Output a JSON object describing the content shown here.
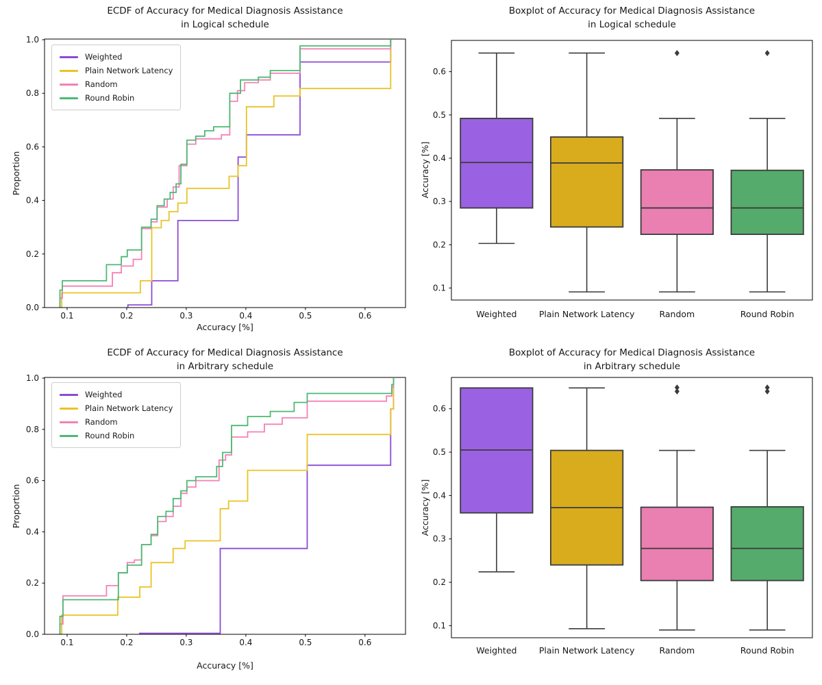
{
  "figure": {
    "background": "#ffffff",
    "text_color": "#171717",
    "spine_color": "#000000",
    "box_edge_color": "#3b3b3b"
  },
  "chart_data": [
    {
      "type": "line",
      "subtype": "ecdf-step",
      "title": "ECDF of Accuracy for Medical Diagnosis Assistance\nin Logical schedule",
      "xlabel": "Accuracy [%]",
      "ylabel": "Proportion",
      "xlim": [
        0.0621,
        0.668
      ],
      "ylim": [
        0.0,
        1.0
      ],
      "xticks": [
        0.1,
        0.2,
        0.3,
        0.4,
        0.5,
        0.6
      ],
      "yticks": [
        0.0,
        0.2,
        0.4,
        0.6,
        0.8,
        1.0
      ],
      "grid": false,
      "legend": {
        "position": "upper left",
        "entries": [
          "Weighted",
          "Plain Network Latency",
          "Random",
          "Round Robin"
        ]
      },
      "series": [
        {
          "name": "Weighted",
          "color": "#8b4bd5",
          "steps": [
            [
              0.202,
              0.01
            ],
            [
              0.242,
              0.1
            ],
            [
              0.286,
              0.325
            ],
            [
              0.387,
              0.562
            ],
            [
              0.401,
              0.645
            ],
            [
              0.491,
              0.917
            ],
            [
              0.643,
              1.0
            ]
          ]
        },
        {
          "name": "Plain Network Latency",
          "color": "#e9c326",
          "steps": [
            [
              0.091,
              0.055
            ],
            [
              0.223,
              0.1
            ],
            [
              0.242,
              0.298
            ],
            [
              0.258,
              0.325
            ],
            [
              0.271,
              0.358
            ],
            [
              0.286,
              0.39
            ],
            [
              0.301,
              0.445
            ],
            [
              0.372,
              0.49
            ],
            [
              0.387,
              0.53
            ],
            [
              0.401,
              0.75
            ],
            [
              0.447,
              0.79
            ],
            [
              0.491,
              0.818
            ],
            [
              0.643,
              1.0
            ]
          ]
        },
        {
          "name": "Random",
          "color": "#f381b5",
          "steps": [
            [
              0.088,
              0.035
            ],
            [
              0.092,
              0.08
            ],
            [
              0.176,
              0.13
            ],
            [
              0.191,
              0.155
            ],
            [
              0.211,
              0.18
            ],
            [
              0.225,
              0.295
            ],
            [
              0.241,
              0.32
            ],
            [
              0.251,
              0.375
            ],
            [
              0.268,
              0.405
            ],
            [
              0.278,
              0.45
            ],
            [
              0.288,
              0.53
            ],
            [
              0.301,
              0.61
            ],
            [
              0.316,
              0.63
            ],
            [
              0.359,
              0.645
            ],
            [
              0.373,
              0.77
            ],
            [
              0.386,
              0.81
            ],
            [
              0.398,
              0.84
            ],
            [
              0.421,
              0.85
            ],
            [
              0.441,
              0.875
            ],
            [
              0.491,
              0.966
            ],
            [
              0.643,
              1.0
            ]
          ]
        },
        {
          "name": "Round Robin",
          "color": "#4cb974",
          "steps": [
            [
              0.088,
              0.065
            ],
            [
              0.092,
              0.1
            ],
            [
              0.166,
              0.16
            ],
            [
              0.191,
              0.19
            ],
            [
              0.201,
              0.215
            ],
            [
              0.225,
              0.3
            ],
            [
              0.241,
              0.33
            ],
            [
              0.251,
              0.38
            ],
            [
              0.263,
              0.405
            ],
            [
              0.273,
              0.43
            ],
            [
              0.283,
              0.462
            ],
            [
              0.291,
              0.535
            ],
            [
              0.301,
              0.625
            ],
            [
              0.316,
              0.64
            ],
            [
              0.331,
              0.66
            ],
            [
              0.346,
              0.675
            ],
            [
              0.373,
              0.8
            ],
            [
              0.391,
              0.85
            ],
            [
              0.421,
              0.86
            ],
            [
              0.441,
              0.885
            ],
            [
              0.491,
              0.977
            ],
            [
              0.643,
              1.0
            ]
          ]
        }
      ]
    },
    {
      "type": "boxplot",
      "title": "Boxplot of Accuracy for Medical Diagnosis Assistance\nin Logical schedule",
      "xlabel": "",
      "ylabel": "Accuracy [%]",
      "ylim": [
        0.0722,
        0.6722
      ],
      "yticks": [
        0.1,
        0.2,
        0.3,
        0.4,
        0.5,
        0.6
      ],
      "grid": false,
      "categories": [
        "Weighted",
        "Plain Network Latency",
        "Random",
        "Round Robin"
      ],
      "boxes": [
        {
          "label": "Weighted",
          "color": "#9a62e3",
          "whislo": 0.203,
          "q1": 0.285,
          "med": 0.39,
          "q3": 0.492,
          "whishi": 0.643,
          "fliers": []
        },
        {
          "label": "Plain Network Latency",
          "color": "#d9ac1e",
          "whislo": 0.091,
          "q1": 0.241,
          "med": 0.389,
          "q3": 0.449,
          "whishi": 0.643,
          "fliers": []
        },
        {
          "label": "Random",
          "color": "#ea7fb1",
          "whislo": 0.091,
          "q1": 0.224,
          "med": 0.285,
          "q3": 0.373,
          "whishi": 0.492,
          "fliers": [
            0.643
          ]
        },
        {
          "label": "Round Robin",
          "color": "#55ab6b",
          "whislo": 0.091,
          "q1": 0.224,
          "med": 0.285,
          "q3": 0.372,
          "whishi": 0.492,
          "fliers": [
            0.643
          ]
        }
      ]
    },
    {
      "type": "line",
      "subtype": "ecdf-step",
      "title": "ECDF of Accuracy for Medical Diagnosis Assistance\nin Arbitrary schedule",
      "xlabel": "Accuracy [%]",
      "ylabel": "Proportion",
      "xlim": [
        0.0621,
        0.668
      ],
      "ylim": [
        0.0,
        1.0
      ],
      "xticks": [
        0.1,
        0.2,
        0.3,
        0.4,
        0.5,
        0.6
      ],
      "yticks": [
        0.0,
        0.2,
        0.4,
        0.6,
        0.8,
        1.0
      ],
      "grid": false,
      "legend": {
        "position": "upper left",
        "entries": [
          "Weighted",
          "Plain Network Latency",
          "Random",
          "Round Robin"
        ]
      },
      "series": [
        {
          "name": "Weighted",
          "color": "#8b4bd5",
          "steps": [
            [
              0.222,
              0.004
            ],
            [
              0.357,
              0.335
            ],
            [
              0.503,
              0.66
            ],
            [
              0.643,
              0.88
            ],
            [
              0.648,
              1.0
            ]
          ]
        },
        {
          "name": "Plain Network Latency",
          "color": "#e9c326",
          "steps": [
            [
              0.091,
              0.075
            ],
            [
              0.185,
              0.145
            ],
            [
              0.222,
              0.185
            ],
            [
              0.241,
              0.28
            ],
            [
              0.278,
              0.335
            ],
            [
              0.298,
              0.365
            ],
            [
              0.357,
              0.49
            ],
            [
              0.371,
              0.52
            ],
            [
              0.403,
              0.64
            ],
            [
              0.503,
              0.78
            ],
            [
              0.643,
              0.88
            ],
            [
              0.648,
              1.0
            ]
          ]
        },
        {
          "name": "Random",
          "color": "#f381b5",
          "steps": [
            [
              0.088,
              0.04
            ],
            [
              0.093,
              0.15
            ],
            [
              0.166,
              0.19
            ],
            [
              0.186,
              0.24
            ],
            [
              0.201,
              0.28
            ],
            [
              0.213,
              0.29
            ],
            [
              0.225,
              0.35
            ],
            [
              0.241,
              0.385
            ],
            [
              0.252,
              0.44
            ],
            [
              0.266,
              0.46
            ],
            [
              0.278,
              0.5
            ],
            [
              0.291,
              0.55
            ],
            [
              0.301,
              0.575
            ],
            [
              0.316,
              0.6
            ],
            [
              0.355,
              0.68
            ],
            [
              0.366,
              0.7
            ],
            [
              0.376,
              0.77
            ],
            [
              0.403,
              0.79
            ],
            [
              0.431,
              0.82
            ],
            [
              0.461,
              0.845
            ],
            [
              0.503,
              0.91
            ],
            [
              0.636,
              0.93
            ],
            [
              0.645,
              0.965
            ],
            [
              0.648,
              1.0
            ]
          ]
        },
        {
          "name": "Round Robin",
          "color": "#4cb974",
          "steps": [
            [
              0.088,
              0.07
            ],
            [
              0.093,
              0.135
            ],
            [
              0.186,
              0.24
            ],
            [
              0.201,
              0.27
            ],
            [
              0.225,
              0.35
            ],
            [
              0.241,
              0.39
            ],
            [
              0.252,
              0.46
            ],
            [
              0.266,
              0.48
            ],
            [
              0.278,
              0.53
            ],
            [
              0.291,
              0.56
            ],
            [
              0.301,
              0.6
            ],
            [
              0.316,
              0.615
            ],
            [
              0.351,
              0.655
            ],
            [
              0.361,
              0.71
            ],
            [
              0.376,
              0.815
            ],
            [
              0.403,
              0.85
            ],
            [
              0.441,
              0.87
            ],
            [
              0.481,
              0.905
            ],
            [
              0.503,
              0.94
            ],
            [
              0.645,
              0.975
            ],
            [
              0.648,
              1.0
            ]
          ]
        }
      ]
    },
    {
      "type": "boxplot",
      "title": "Boxplot of Accuracy for Medical Diagnosis Assistance\nin Arbitrary schedule",
      "xlabel": "",
      "ylabel": "Accuracy [%]",
      "ylim": [
        0.0722,
        0.6722
      ],
      "yticks": [
        0.1,
        0.2,
        0.3,
        0.4,
        0.5,
        0.6
      ],
      "grid": false,
      "categories": [
        "Weighted",
        "Plain Network Latency",
        "Random",
        "Round Robin"
      ],
      "boxes": [
        {
          "label": "Weighted",
          "color": "#9a62e3",
          "whislo": 0.224,
          "q1": 0.36,
          "med": 0.505,
          "q3": 0.648,
          "whishi": 0.648,
          "fliers": []
        },
        {
          "label": "Plain Network Latency",
          "color": "#d9ac1e",
          "whislo": 0.093,
          "q1": 0.24,
          "med": 0.372,
          "q3": 0.504,
          "whishi": 0.648,
          "fliers": []
        },
        {
          "label": "Random",
          "color": "#ea7fb1",
          "whislo": 0.09,
          "q1": 0.204,
          "med": 0.278,
          "q3": 0.373,
          "whishi": 0.504,
          "fliers": [
            0.64,
            0.649
          ]
        },
        {
          "label": "Round Robin",
          "color": "#55ab6b",
          "whislo": 0.09,
          "q1": 0.204,
          "med": 0.278,
          "q3": 0.374,
          "whishi": 0.504,
          "fliers": [
            0.64,
            0.649
          ]
        }
      ]
    }
  ]
}
